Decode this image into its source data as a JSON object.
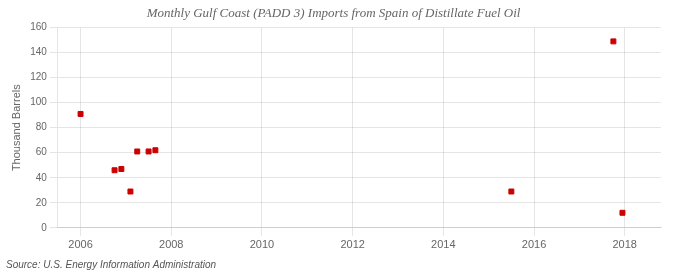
{
  "chart_data": {
    "type": "scatter",
    "title": "Monthly Gulf Coast (PADD 3) Imports from Spain of Distillate Fuel Oil",
    "ylabel": "Thousand Barrels",
    "annotation": "Source: U.S. Energy Information Administration",
    "x": [
      2006.0,
      2006.75,
      2006.9,
      2007.1,
      2007.25,
      2007.5,
      2007.65,
      2015.5,
      2017.75,
      2017.95
    ],
    "values": [
      91,
      46,
      47,
      29,
      61,
      61,
      62,
      29,
      149,
      12
    ],
    "color": "#cc0000",
    "marker": "square",
    "xlim": [
      2005.5,
      2018.8
    ],
    "xticks": [
      2006,
      2008,
      2010,
      2012,
      2014,
      2016,
      2018
    ],
    "ylim": [
      0,
      160
    ],
    "yticks": [
      0,
      20,
      40,
      60,
      80,
      100,
      120,
      140,
      160
    ],
    "grid": true
  }
}
